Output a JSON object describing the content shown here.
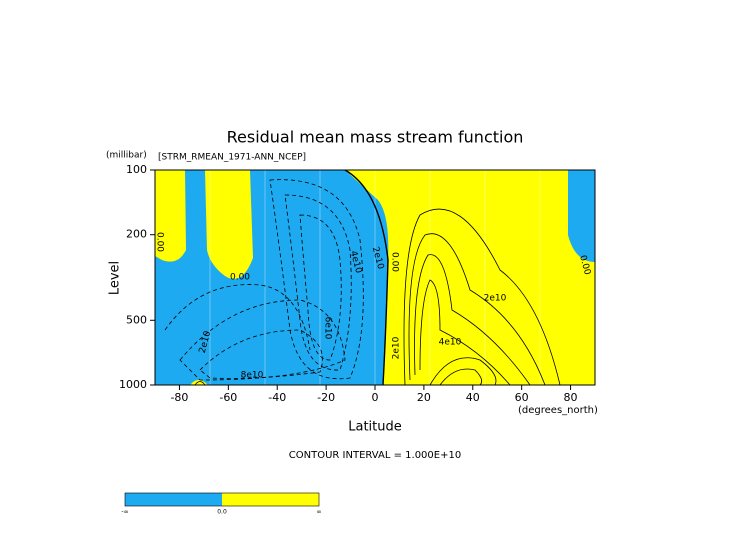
{
  "chart_data": {
    "type": "contour",
    "title": "Residual mean mass stream function",
    "subtitle": "[STRM_RMEAN_1971-ANN_NCEP]",
    "y_units": "(millibar)",
    "x_units": "(degrees_north)",
    "xlabel": "Latitude",
    "ylabel": "Level",
    "footer": "CONTOUR INTERVAL = 1.000E+10",
    "xlim": [
      -90,
      90
    ],
    "xticks": [
      -80,
      -60,
      -40,
      -20,
      0,
      20,
      40,
      60,
      80
    ],
    "ylim": [
      1000,
      100
    ],
    "yticks": [
      100,
      200,
      500,
      1000
    ],
    "y_log_scale": true,
    "colors": {
      "negative": "#1eaaf0",
      "positive": "#ffff00"
    },
    "contour_labels": [
      "0.00",
      "0.00",
      "2e10",
      "4e10",
      "6e10",
      "2e10",
      "8e10",
      "0.00",
      "2e10",
      "2e10",
      "4e10",
      "0.00"
    ],
    "colorbar_labels": [
      "-∞",
      "0.0",
      "∞"
    ]
  }
}
